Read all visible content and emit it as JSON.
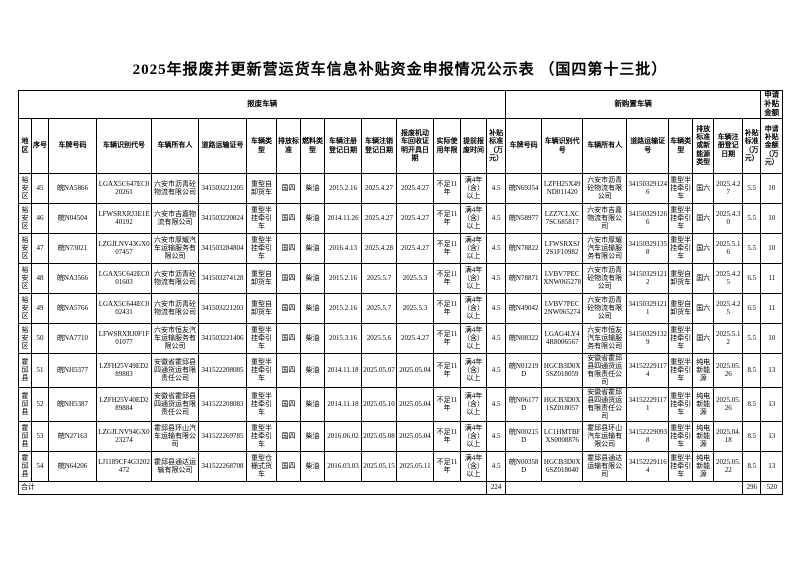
{
  "page_title": "2025年报废并更新营运货车信息补贴资金申报情况公示表 （国四第十三批）",
  "table": {
    "group_headers": [
      {
        "label": "报废车辆",
        "span": 15
      },
      {
        "label": "新购置车辆",
        "span": 8
      },
      {
        "label": "申请补贴金额",
        "span": 1
      }
    ],
    "columns": [
      "地区",
      "序号",
      "车牌号码",
      "车辆识别代号",
      "车辆所有人",
      "道路运输证号",
      "车辆类型",
      "排放标准",
      "燃料类型",
      "车辆注册登记日期",
      "车辆注销登记日期",
      "报废机动车回收证明开具日期",
      "实际使用年限",
      "提前报废时间",
      "补贴标准（万元）",
      "车牌号码",
      "车辆识别代号",
      "车辆所有人",
      "道路运输证号",
      "车辆类型",
      "排放标准或新能源类型",
      "车辆注册登记日期",
      "补贴标准（万元）",
      "申请补贴金额（万元）"
    ],
    "rows": [
      [
        "裕安区",
        "45",
        "皖NA5866",
        "LGAX5C647EC020261",
        "六安市沥青砼物流有限公司",
        "341503221205",
        "重型自卸货车",
        "国四",
        "柴油",
        "2015.2.16",
        "2025.4.27",
        "2025.4.27",
        "不足11年",
        "满4年（含）以上",
        "4.5",
        "皖N69354",
        "LZFH25X49ND011420",
        "六安市沥青砼物流有限公司",
        "341503291246",
        "重型半挂牵引车",
        "国六",
        "2025.4.27",
        "5.5",
        "10"
      ],
      [
        "裕安区",
        "46",
        "皖N04504",
        "LFWSRXRJ3E1E40192",
        "六安市吉嘉物流有限公司",
        "341503220824",
        "重型半挂牵引车",
        "国四",
        "柴油",
        "2014.11.26",
        "2025.4.27",
        "2025.4.27",
        "不足11年",
        "满4年（含）以上",
        "4.5",
        "皖N58977",
        "LZZ7CLXC7SC685817",
        "六安市吉嘉物流有限公司",
        "341503291266",
        "重型半挂牵引车",
        "国六",
        "2025.4.30",
        "5.5",
        "10"
      ],
      [
        "裕安区",
        "47",
        "皖N73021",
        "LZGJLNV43GX007457",
        "六安市厚耀汽车运输服务有限公司",
        "341503284804",
        "重型半挂牵引车",
        "国四",
        "柴油",
        "2016.4.13",
        "2025.4.28",
        "2025.4.27",
        "不足11年",
        "满4年（含）以上",
        "4.5",
        "皖N78822",
        "LFWSRXSJ2S1F10982",
        "六安市厚耀汽车运输服务有限公司",
        "341503291358",
        "重型半挂牵引车",
        "国六",
        "2025.5.16",
        "5.5",
        "10"
      ],
      [
        "裕安区",
        "48",
        "皖NA3566",
        "LGAX5C642EC001603",
        "六安市沥青砼物流有限公司",
        "341503274128",
        "重型自卸货车",
        "国四",
        "柴油",
        "2015.2.16",
        "2025.5.7",
        "2025.5.3",
        "不足11年",
        "满4年（含）以上",
        "4.5",
        "皖N78871",
        "LVBV7PECXNW065278",
        "六安市沥青砼物流有限公司",
        "341503291212",
        "重型自卸货车",
        "国六",
        "2025.4.25",
        "6.5",
        "11"
      ],
      [
        "裕安区",
        "49",
        "皖NA5766",
        "LGAX5C644EC002431",
        "六安市沥青砼物流有限公司",
        "341503221203",
        "重型自卸货车",
        "国四",
        "柴油",
        "2015.2.16",
        "2025.5.7",
        "2025.5.3",
        "不足11年",
        "满4年（含）以上",
        "4.5",
        "皖N49042",
        "LVBV7PEC2NW065274",
        "六安市沥青砼物流有限公司",
        "341503291211",
        "重型自卸货车",
        "国六",
        "2025.4.25",
        "6.5",
        "11"
      ],
      [
        "裕安区",
        "50",
        "皖NA7710",
        "LFWSRXRJ0F1F01077",
        "六安市恒友汽车运输服务有限公司",
        "341503221406",
        "重型半挂牵引车",
        "国四",
        "柴油",
        "2015.3.16",
        "2025.5.6",
        "2025.4.27",
        "不足11年",
        "满4年（含）以上",
        "4.5",
        "皖N08322",
        "LGAG4LY44R8006567",
        "六安市恒友汽车运输服务有限公司",
        "341503291329",
        "重型半挂牵引车",
        "国六",
        "2025.5.12",
        "5.5",
        "10"
      ],
      [
        "霍邱县",
        "51",
        "皖NH5377",
        "LZFH25V49ED289883",
        "安徽省霍邱县四通货运有限责任公司",
        "341522208085",
        "重型半挂牵引车",
        "国四",
        "柴油",
        "2014.11.18",
        "2025.05.07",
        "2025.05.04",
        "不足11年",
        "满4年（含）以上",
        "4.5",
        "皖N01219D",
        "HGCB3D0X5SZ018059",
        "安徽省霍邱县四通货运有限责任公司",
        "341522291174",
        "重型半挂牵引车",
        "纯电新能源",
        "2025.05.26",
        "8.5",
        "13"
      ],
      [
        "霍邱县",
        "52",
        "皖NH5387",
        "LZFH25V40ED289884",
        "安徽省霍邱县四通货运有限责任公司",
        "341522208083",
        "重型半挂牵引车",
        "国四",
        "柴油",
        "2014.11.18",
        "2025.05.10",
        "2025.05.04",
        "不足11年",
        "满4年（含）以上",
        "4.5",
        "皖N06177D",
        "HGCB3D0X1SZ018057",
        "安徽省霍邱县四通货运有限责任公司",
        "341522291171",
        "重型半挂牵引车",
        "纯电新能源",
        "2025.05.26",
        "8.5",
        "13"
      ],
      [
        "霍邱县",
        "53",
        "皖N27163",
        "LZGJLNV94GX023274",
        "霍邱县环山汽车运输有限公司",
        "341522269785",
        "重型半挂牵引车",
        "国四",
        "柴油",
        "2016.06.02",
        "2025.05.08",
        "2025.05.04",
        "不足11年",
        "满4年（含）以上",
        "4.5",
        "皖N00215D",
        "LC1HMTBFXS0008876",
        "霍邱县环山汽车运输有限公司",
        "341522290938",
        "重型半挂牵引车",
        "纯电新能源",
        "2025.04.18",
        "8.5",
        "13"
      ],
      [
        "霍邱县",
        "54",
        "皖N64206",
        "LJ1189CF4G3202472",
        "霍邱县通达运输有限公司",
        "341522268708",
        "重型仓栅式货车",
        "国四",
        "柴油",
        "2016.03.03",
        "2025.05.15",
        "2025.05.11",
        "不足11年",
        "满4年（含）以上",
        "4.5",
        "皖N00358D",
        "HGCB3D0X6SZ018040",
        "霍邱县通达运输有限公司",
        "341522291164",
        "重型半挂牵引车",
        "纯电新能源",
        "2025.05.22",
        "8.5",
        "13"
      ]
    ],
    "total_row": {
      "label": "合计",
      "scrapped_subsidy_total": "224",
      "new_subsidy_total": "296",
      "applied_total": "520"
    }
  }
}
